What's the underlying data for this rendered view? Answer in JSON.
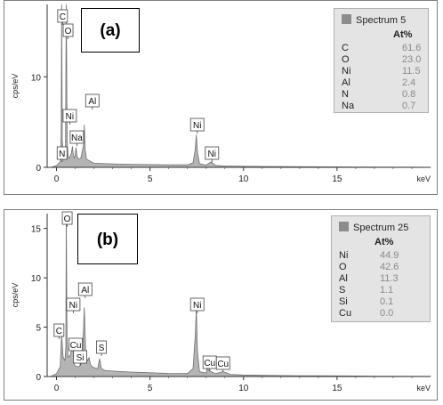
{
  "panels": [
    {
      "id": "a",
      "tag": "(a)",
      "legend": {
        "title": "Spectrum 5",
        "unit": "At%",
        "rows": [
          {
            "el": "C",
            "val": "61.6"
          },
          {
            "el": "O",
            "val": "23.0"
          },
          {
            "el": "Ni",
            "val": "11.5"
          },
          {
            "el": "Al",
            "val": "2.4"
          },
          {
            "el": "N",
            "val": "0.8"
          },
          {
            "el": "Na",
            "val": "0.7"
          }
        ]
      }
    },
    {
      "id": "b",
      "tag": "(b)",
      "legend": {
        "title": "Spectrum 25",
        "unit": "At%",
        "rows": [
          {
            "el": "Ni",
            "val": "44.9"
          },
          {
            "el": "O",
            "val": "42.6"
          },
          {
            "el": "Al",
            "val": "11.3"
          },
          {
            "el": "S",
            "val": "1.1"
          },
          {
            "el": "Si",
            "val": "0.1"
          },
          {
            "el": "Cu",
            "val": "0.0"
          }
        ]
      }
    }
  ],
  "chart_data": [
    {
      "type": "area",
      "xlabel": "keV",
      "ylabel": "cps/eV",
      "xlim": [
        -0.5,
        20
      ],
      "ylim": [
        0,
        18
      ],
      "xticks": [
        0,
        5,
        10,
        15
      ],
      "yticks": [
        0,
        10
      ],
      "series": [
        {
          "x": [
            -0.3,
            0.0,
            0.2,
            0.25,
            0.277,
            0.31,
            0.36,
            0.39,
            0.43,
            0.48,
            0.525,
            0.57,
            0.62,
            0.7,
            0.8,
            0.851,
            0.9,
            0.95,
            1.0,
            1.041,
            1.1,
            1.2,
            1.3,
            1.45,
            1.487,
            1.53,
            1.6,
            2.0,
            3.0,
            4.0,
            5.0,
            6.0,
            7.0,
            7.3,
            7.42,
            7.478,
            7.54,
            7.65,
            8.0,
            8.265,
            8.5,
            9.0,
            10.0,
            11.0,
            12.0,
            13.0,
            14.0,
            15.0,
            16.0,
            17.0,
            18.0,
            19.0,
            20.0
          ],
          "y": [
            0.0,
            0.2,
            0.6,
            3.5,
            18.0,
            3.0,
            1.5,
            2.0,
            1.2,
            2.5,
            18.0,
            3.0,
            1.2,
            1.0,
            1.6,
            2.3,
            1.4,
            1.0,
            1.3,
            2.2,
            1.2,
            0.9,
            1.0,
            2.5,
            4.7,
            2.0,
            0.9,
            0.45,
            0.38,
            0.33,
            0.3,
            0.28,
            0.28,
            0.5,
            2.0,
            3.6,
            1.6,
            0.4,
            0.25,
            0.6,
            0.22,
            0.15,
            0.12,
            0.1,
            0.08,
            0.07,
            0.06,
            0.05,
            0.04,
            0.03,
            0.02,
            0.02,
            0.01
          ]
        }
      ],
      "peak_labels": [
        {
          "label": "C",
          "x": 0.277
        },
        {
          "label": "O",
          "x": 0.525
        },
        {
          "label": "Ni",
          "x": 0.851
        },
        {
          "label": "Na",
          "x": 1.041
        },
        {
          "label": "Al",
          "x": 1.487
        },
        {
          "label": "N",
          "x": 0.392
        },
        {
          "label": "Ni",
          "x": 7.478
        },
        {
          "label": "Ni",
          "x": 8.265
        }
      ]
    },
    {
      "type": "area",
      "xlabel": "keV",
      "ylabel": "cps/eV",
      "xlim": [
        -0.5,
        20
      ],
      "ylim": [
        0,
        16.5
      ],
      "xticks": [
        0,
        5,
        10,
        15
      ],
      "yticks": [
        0,
        5,
        10,
        15
      ],
      "series": [
        {
          "x": [
            -0.3,
            0.0,
            0.2,
            0.277,
            0.35,
            0.45,
            0.5,
            0.525,
            0.56,
            0.62,
            0.7,
            0.8,
            0.851,
            0.93,
            0.95,
            1.0,
            1.1,
            1.2,
            1.3,
            1.4,
            1.487,
            1.56,
            1.65,
            1.74,
            1.82,
            1.9,
            2.0,
            2.2,
            2.308,
            2.4,
            2.6,
            3.0,
            4.0,
            5.0,
            6.0,
            7.0,
            7.3,
            7.42,
            7.478,
            7.54,
            7.65,
            8.0,
            8.048,
            8.265,
            8.5,
            8.905,
            9.3,
            10.0,
            11.0,
            12.0,
            13.0,
            14.0,
            15.0,
            16.0,
            17.0,
            18.0,
            19.0,
            20.0
          ],
          "y": [
            0.0,
            0.3,
            1.0,
            4.2,
            2.0,
            1.6,
            3.0,
            16.5,
            4.0,
            2.0,
            2.0,
            2.6,
            3.4,
            2.2,
            1.2,
            1.1,
            1.0,
            1.0,
            1.2,
            2.5,
            7.0,
            2.5,
            1.6,
            1.9,
            1.2,
            1.0,
            0.9,
            0.8,
            1.8,
            0.8,
            0.6,
            0.55,
            0.45,
            0.38,
            0.32,
            0.3,
            0.8,
            4.2,
            6.8,
            2.5,
            0.5,
            0.35,
            0.8,
            0.5,
            0.3,
            0.5,
            0.22,
            0.15,
            0.12,
            0.1,
            0.08,
            0.07,
            0.06,
            0.05,
            0.04,
            0.03,
            0.02,
            0.02
          ]
        }
      ],
      "peak_labels": [
        {
          "label": "C",
          "x": 0.277
        },
        {
          "label": "O",
          "x": 0.525
        },
        {
          "label": "Ni",
          "x": 0.851
        },
        {
          "label": "Cu",
          "x": 0.93
        },
        {
          "label": "Si",
          "x": 1.74
        },
        {
          "label": "Al",
          "x": 1.487
        },
        {
          "label": "S",
          "x": 2.308
        },
        {
          "label": "Ni",
          "x": 7.478
        },
        {
          "label": "Cu",
          "x": 8.048
        },
        {
          "label": "Cu",
          "x": 8.905
        }
      ]
    }
  ]
}
